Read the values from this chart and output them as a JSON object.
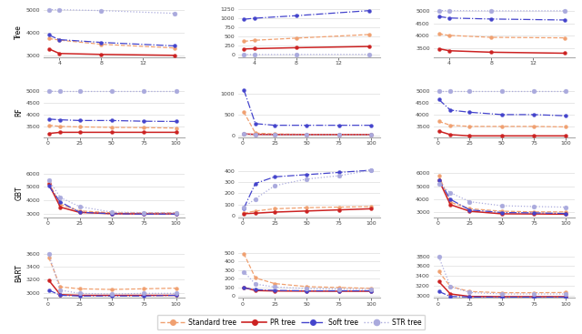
{
  "row_labels": [
    "Tree",
    "RF",
    "GBT",
    "BART"
  ],
  "colors": {
    "standard": "#F0A070",
    "pr": "#CC2222",
    "soft": "#4444CC",
    "str": "#AAAADD"
  },
  "subplots": {
    "tree_d1": {
      "x": [
        3,
        4,
        8,
        15
      ],
      "standard": [
        3750,
        3680,
        3500,
        3340
      ],
      "pr": [
        3300,
        3100,
        3060,
        3020
      ],
      "soft": [
        3900,
        3700,
        3580,
        3430
      ],
      "str": [
        5000,
        5000,
        4960,
        4840
      ],
      "ylim": [
        2950,
        5100
      ],
      "yticks": [
        3000,
        4000,
        5000
      ],
      "xticks": [
        4,
        8,
        12
      ],
      "xlim": [
        2.5,
        16
      ]
    },
    "tree_d2": {
      "x": [
        3,
        4,
        8,
        15
      ],
      "standard": [
        370,
        400,
        460,
        560
      ],
      "pr": [
        160,
        170,
        195,
        230
      ],
      "soft": [
        980,
        1010,
        1080,
        1220
      ],
      "str": [
        5,
        5,
        8,
        10
      ],
      "ylim": [
        -60,
        1310
      ],
      "yticks": [
        0,
        250,
        500,
        750,
        1000,
        1250
      ],
      "xticks": [
        4,
        8,
        12
      ],
      "xlim": [
        2.5,
        16
      ]
    },
    "tree_d3": {
      "x": [
        3,
        4,
        8,
        15
      ],
      "standard": [
        4080,
        4020,
        3940,
        3920
      ],
      "pr": [
        3480,
        3400,
        3340,
        3300
      ],
      "soft": [
        4780,
        4720,
        4680,
        4640
      ],
      "str": [
        5020,
        5020,
        5010,
        5010
      ],
      "ylim": [
        3150,
        5150
      ],
      "yticks": [
        3500,
        4000,
        4500,
        5000
      ],
      "xticks": [
        4,
        8,
        12
      ],
      "xlim": [
        2.5,
        16
      ]
    },
    "rf_d1": {
      "x": [
        1,
        10,
        25,
        50,
        75,
        100
      ],
      "standard": [
        3560,
        3510,
        3490,
        3470,
        3460,
        3440
      ],
      "pr": [
        3210,
        3260,
        3260,
        3260,
        3260,
        3260
      ],
      "soft": [
        3820,
        3790,
        3760,
        3760,
        3730,
        3720
      ],
      "str": [
        5000,
        4990,
        4990,
        4990,
        4990,
        4990
      ],
      "ylim": [
        3050,
        5150
      ],
      "yticks": [
        3500,
        4000,
        4500,
        5000
      ],
      "xticks": [
        0,
        25,
        50,
        75,
        100
      ],
      "xlim": [
        -3,
        107
      ]
    },
    "rf_d2": {
      "x": [
        1,
        10,
        25,
        50,
        75,
        100
      ],
      "standard": [
        560,
        50,
        30,
        20,
        20,
        20
      ],
      "pr": [
        30,
        20,
        15,
        15,
        15,
        15
      ],
      "soft": [
        1100,
        280,
        240,
        240,
        240,
        240
      ],
      "str": [
        30,
        10,
        10,
        10,
        10,
        10
      ],
      "ylim": [
        -50,
        1150
      ],
      "yticks": [
        0,
        500,
        1000
      ],
      "xticks": [
        0,
        25,
        50,
        75,
        100
      ],
      "xlim": [
        -3,
        107
      ]
    },
    "rf_d3": {
      "x": [
        1,
        10,
        25,
        50,
        75,
        100
      ],
      "standard": [
        3720,
        3560,
        3510,
        3510,
        3510,
        3490
      ],
      "pr": [
        3310,
        3160,
        3110,
        3110,
        3110,
        3110
      ],
      "soft": [
        4650,
        4200,
        4110,
        4010,
        4010,
        3960
      ],
      "str": [
        5010,
        5010,
        5010,
        5010,
        5010,
        5010
      ],
      "ylim": [
        3050,
        5150
      ],
      "yticks": [
        3500,
        4000,
        4500,
        5000
      ],
      "xticks": [
        0,
        25,
        50,
        75,
        100
      ],
      "xlim": [
        -3,
        107
      ]
    },
    "gbt_d1": {
      "x": [
        1,
        10,
        25,
        50,
        75,
        100
      ],
      "standard": [
        5300,
        3680,
        3200,
        3060,
        3050,
        3060
      ],
      "pr": [
        5200,
        3480,
        3090,
        2990,
        2980,
        2980
      ],
      "soft": [
        5050,
        3870,
        3100,
        2990,
        2960,
        2960
      ],
      "str": [
        5500,
        4200,
        3520,
        3110,
        3070,
        3060
      ],
      "ylim": [
        2700,
        6400
      ],
      "yticks": [
        3000,
        4000,
        5000,
        6000
      ],
      "xticks": [
        0,
        25,
        50,
        75,
        100
      ],
      "xlim": [
        -3,
        107
      ]
    },
    "gbt_d2": {
      "x": [
        1,
        10,
        25,
        50,
        75,
        100
      ],
      "standard": [
        20,
        40,
        60,
        70,
        75,
        80
      ],
      "pr": [
        15,
        20,
        30,
        40,
        50,
        60
      ],
      "soft": [
        65,
        290,
        350,
        370,
        390,
        410
      ],
      "str": [
        75,
        150,
        270,
        330,
        360,
        410
      ],
      "ylim": [
        -20,
        430
      ],
      "yticks": [
        0,
        100,
        200,
        300,
        400
      ],
      "xticks": [
        0,
        25,
        50,
        75,
        100
      ],
      "xlim": [
        -3,
        107
      ]
    },
    "gbt_d3": {
      "x": [
        1,
        10,
        25,
        50,
        75,
        100
      ],
      "standard": [
        5800,
        3780,
        3280,
        3090,
        3040,
        3040
      ],
      "pr": [
        5480,
        3590,
        3090,
        2890,
        2880,
        2860
      ],
      "soft": [
        5500,
        4000,
        3190,
        2990,
        2960,
        2910
      ],
      "str": [
        5200,
        4510,
        3820,
        3510,
        3450,
        3400
      ],
      "ylim": [
        2600,
        6400
      ],
      "yticks": [
        3000,
        4000,
        5000,
        6000
      ],
      "xticks": [
        0,
        25,
        50,
        75,
        100
      ],
      "xlim": [
        -3,
        107
      ]
    },
    "bart_d1": {
      "x": [
        1,
        10,
        25,
        50,
        75,
        100
      ],
      "standard": [
        3540,
        3090,
        3060,
        3050,
        3060,
        3070
      ],
      "pr": [
        3190,
        2970,
        2960,
        2960,
        2960,
        2960
      ],
      "soft": [
        3040,
        2960,
        2950,
        2950,
        2950,
        2960
      ],
      "str": [
        3590,
        3040,
        2990,
        2980,
        2990,
        2990
      ],
      "ylim": [
        2920,
        3680
      ],
      "yticks": [
        3000,
        3200,
        3400,
        3600
      ],
      "xticks": [
        0,
        25,
        50,
        75,
        100
      ],
      "xlim": [
        -3,
        107
      ]
    },
    "bart_d2": {
      "x": [
        1,
        10,
        25,
        50,
        75,
        100
      ],
      "standard": [
        490,
        210,
        145,
        110,
        100,
        90
      ],
      "pr": [
        100,
        65,
        60,
        58,
        57,
        57
      ],
      "soft": [
        95,
        75,
        67,
        62,
        62,
        62
      ],
      "str": [
        280,
        140,
        105,
        88,
        82,
        78
      ],
      "ylim": [
        -20,
        550
      ],
      "yticks": [
        0,
        100,
        200,
        300,
        400,
        500
      ],
      "xticks": [
        0,
        25,
        50,
        75,
        100
      ],
      "xlim": [
        -3,
        107
      ]
    },
    "bart_d3": {
      "x": [
        1,
        10,
        25,
        50,
        75,
        100
      ],
      "standard": [
        3490,
        3190,
        3090,
        3065,
        3065,
        3070
      ],
      "pr": [
        3290,
        3040,
        2990,
        2985,
        2985,
        2985
      ],
      "soft": [
        3090,
        2990,
        2980,
        2975,
        2975,
        2975
      ],
      "str": [
        3790,
        3190,
        3070,
        3040,
        3040,
        3040
      ],
      "ylim": [
        2960,
        3960
      ],
      "yticks": [
        3000,
        3200,
        3400,
        3600,
        3800
      ],
      "xticks": [
        0,
        25,
        50,
        75,
        100
      ],
      "xlim": [
        -3,
        107
      ]
    }
  }
}
